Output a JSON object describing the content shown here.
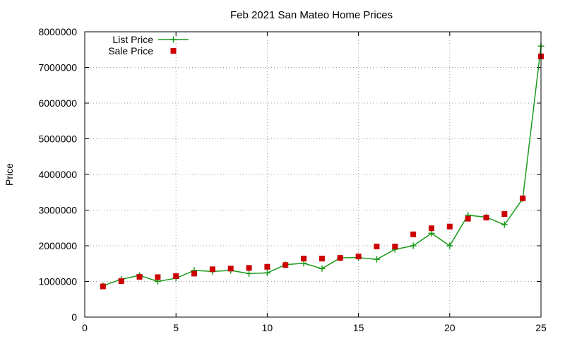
{
  "chart_data": {
    "type": "line",
    "title": "Feb 2021 San Mateo Home Prices",
    "xlabel": "",
    "ylabel": "Price",
    "xlim": [
      0,
      25
    ],
    "ylim": [
      0,
      8000000
    ],
    "x_ticks": [
      "0",
      "5",
      "10",
      "15",
      "20",
      "25"
    ],
    "y_ticks": [
      "0",
      "1000000",
      "2000000",
      "3000000",
      "4000000",
      "5000000",
      "6000000",
      "7000000",
      "8000000"
    ],
    "grid": true,
    "legend_position": "top-left",
    "series": [
      {
        "name": "List Price",
        "style": "linespoints",
        "marker": "plus",
        "color": "#1a9a1a",
        "x": [
          1,
          2,
          3,
          4,
          5,
          6,
          7,
          8,
          9,
          10,
          11,
          12,
          13,
          14,
          15,
          16,
          17,
          18,
          19,
          20,
          21,
          22,
          23,
          24,
          25
        ],
        "values": [
          880000,
          1060000,
          1170000,
          1000000,
          1090000,
          1310000,
          1280000,
          1310000,
          1220000,
          1240000,
          1470000,
          1510000,
          1360000,
          1660000,
          1670000,
          1620000,
          1900000,
          2000000,
          2350000,
          2000000,
          2860000,
          2800000,
          2590000,
          3320000,
          7600000
        ]
      },
      {
        "name": "Sale Price",
        "style": "points",
        "marker": "square",
        "color": "#cc0000",
        "x": [
          1,
          2,
          3,
          4,
          5,
          6,
          7,
          8,
          9,
          10,
          11,
          12,
          13,
          14,
          15,
          16,
          17,
          18,
          19,
          20,
          21,
          22,
          23,
          24,
          25
        ],
        "values": [
          860000,
          1010000,
          1130000,
          1120000,
          1150000,
          1220000,
          1340000,
          1360000,
          1380000,
          1410000,
          1460000,
          1640000,
          1640000,
          1660000,
          1700000,
          1980000,
          1980000,
          2320000,
          2490000,
          2540000,
          2760000,
          2790000,
          2890000,
          3330000,
          7310000
        ]
      }
    ]
  }
}
